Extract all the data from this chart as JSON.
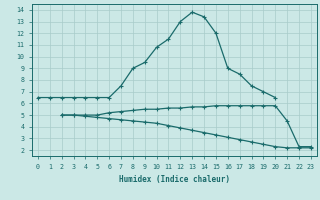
{
  "xlabel": "Humidex (Indice chaleur)",
  "xlim": [
    -0.5,
    23.5
  ],
  "ylim": [
    1.5,
    14.5
  ],
  "xticks": [
    0,
    1,
    2,
    3,
    4,
    5,
    6,
    7,
    8,
    9,
    10,
    11,
    12,
    13,
    14,
    15,
    16,
    17,
    18,
    19,
    20,
    21,
    22,
    23
  ],
  "yticks": [
    2,
    3,
    4,
    5,
    6,
    7,
    8,
    9,
    10,
    11,
    12,
    13,
    14
  ],
  "bg_color": "#cbe8e6",
  "line_color": "#1a6b6b",
  "grid_color": "#a8ccca",
  "line1_x": [
    0,
    1,
    2,
    3,
    4,
    5,
    6,
    7,
    8,
    9,
    10,
    11,
    12,
    13,
    14,
    15,
    16,
    17,
    18,
    19,
    20
  ],
  "line1_y": [
    6.5,
    6.5,
    6.5,
    6.5,
    6.5,
    6.5,
    6.5,
    7.5,
    9.0,
    9.5,
    10.8,
    11.5,
    13.0,
    13.8,
    13.4,
    12.0,
    9.0,
    8.5,
    7.5,
    7.0,
    6.5
  ],
  "line2_x": [
    2,
    3,
    4,
    5,
    6,
    7,
    8,
    9,
    10,
    11,
    12,
    13,
    14,
    15,
    16,
    17,
    18,
    19,
    20,
    21,
    22,
    23
  ],
  "line2_y": [
    5.0,
    5.0,
    5.0,
    5.0,
    5.2,
    5.3,
    5.4,
    5.5,
    5.5,
    5.6,
    5.6,
    5.7,
    5.7,
    5.8,
    5.8,
    5.8,
    5.8,
    5.8,
    5.8,
    4.5,
    2.3,
    2.3
  ],
  "line3_x": [
    2,
    3,
    4,
    5,
    6,
    7,
    8,
    9,
    10,
    11,
    12,
    13,
    14,
    15,
    16,
    17,
    18,
    19,
    20,
    21,
    22,
    23
  ],
  "line3_y": [
    5.0,
    5.0,
    4.9,
    4.8,
    4.7,
    4.6,
    4.5,
    4.4,
    4.3,
    4.1,
    3.9,
    3.7,
    3.5,
    3.3,
    3.1,
    2.9,
    2.7,
    2.5,
    2.3,
    2.2,
    2.2,
    2.2
  ]
}
